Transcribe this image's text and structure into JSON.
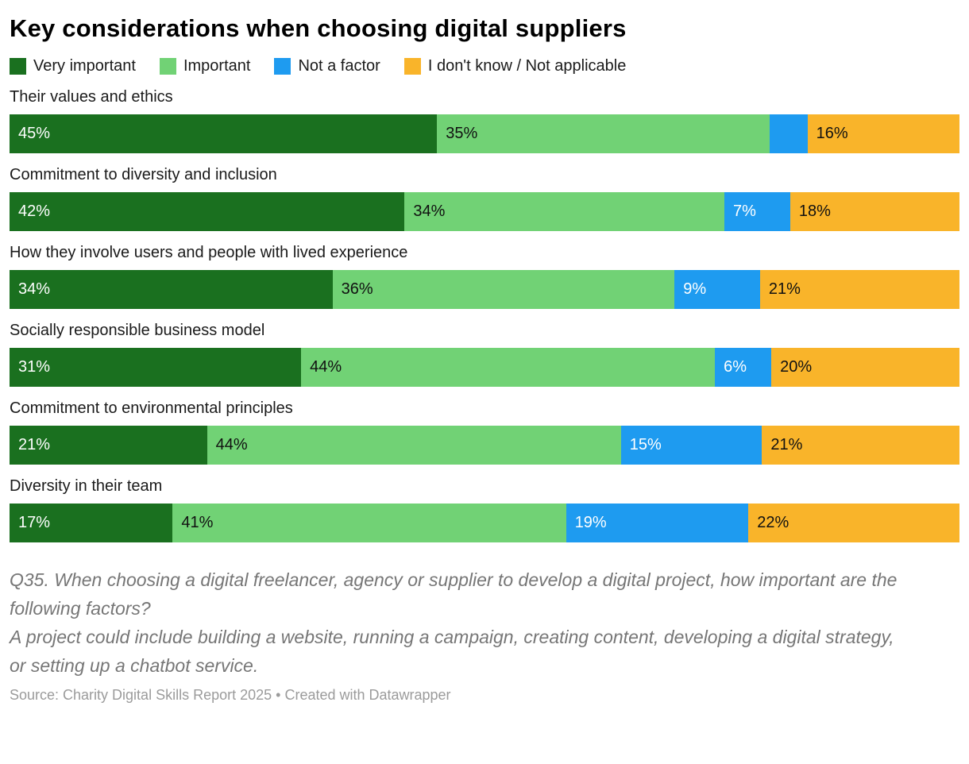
{
  "title": "Key considerations when choosing digital suppliers",
  "legend": {
    "items": [
      {
        "label": "Very important",
        "color": "#1a701f"
      },
      {
        "label": "Important",
        "color": "#71d275"
      },
      {
        "label": "Not a factor",
        "color": "#1e9bf0"
      },
      {
        "label": "I don't know / Not applicable",
        "color": "#f9b42a"
      }
    ]
  },
  "chart_data": {
    "type": "bar",
    "stacked": true,
    "orientation": "horizontal",
    "title": "Key considerations when choosing digital suppliers",
    "value_unit": "%",
    "xlim": [
      0,
      100
    ],
    "categories": [
      "Their values and ethics",
      "Commitment to diversity and inclusion",
      "How they involve users and people with lived experience",
      "Socially responsible business model",
      "Commitment to environmental principles",
      "Diversity in their team"
    ],
    "series": [
      {
        "name": "Very important",
        "color": "#1a701f",
        "label_color": "#ffffff",
        "values": [
          45,
          42,
          34,
          31,
          21,
          17
        ]
      },
      {
        "name": "Important",
        "color": "#71d275",
        "label_color": "#111111",
        "values": [
          35,
          34,
          36,
          44,
          44,
          41
        ]
      },
      {
        "name": "Not a factor",
        "color": "#1e9bf0",
        "label_color": "#ffffff",
        "values": [
          4,
          7,
          9,
          6,
          15,
          19
        ]
      },
      {
        "name": "I don't know / Not applicable",
        "color": "#f9b42a",
        "label_color": "#111111",
        "values": [
          16,
          18,
          21,
          20,
          21,
          22
        ]
      }
    ],
    "segment_labels": [
      [
        "45%",
        "35%",
        "",
        "16%"
      ],
      [
        "42%",
        "34%",
        "7%",
        "18%"
      ],
      [
        "34%",
        "36%",
        "9%",
        "21%"
      ],
      [
        "31%",
        "44%",
        "6%",
        "20%"
      ],
      [
        "21%",
        "44%",
        "15%",
        "21%"
      ],
      [
        "17%",
        "41%",
        "19%",
        "22%"
      ]
    ],
    "legend_position": "top",
    "grid": false
  },
  "notes": {
    "lines": [
      "Q35. When choosing a digital freelancer, agency or supplier to develop a digital project, how important are the following factors?",
      "A project could include building a website, running a campaign, creating content, developing a digital strategy, or setting up a chatbot service."
    ]
  },
  "footer": {
    "source": "Source: Charity Digital Skills Report 2025 • Created with Datawrapper"
  }
}
